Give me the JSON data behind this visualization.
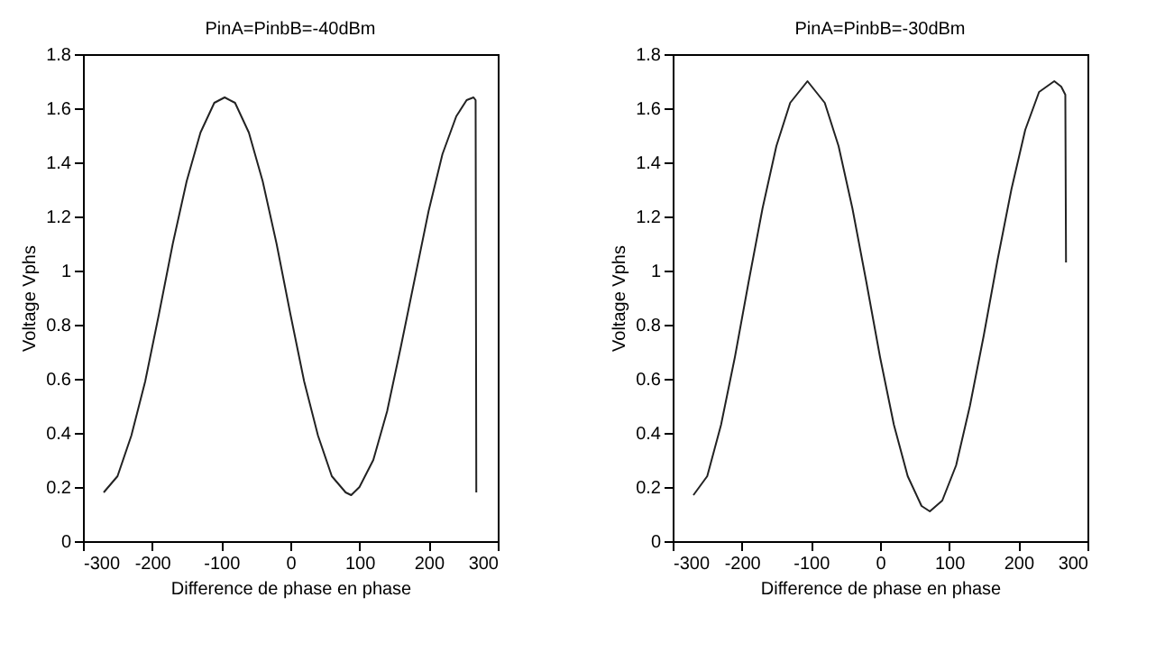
{
  "chart_data": [
    {
      "type": "line",
      "title": "PinA=PinbB=-40dBm",
      "xlabel": "Difference de phase en phase",
      "ylabel": "Voltage Vphs",
      "xlim": [
        -300,
        300
      ],
      "xticks": [
        -300,
        -200,
        -100,
        0,
        100,
        200,
        300
      ],
      "ylim": [
        0,
        1.8
      ],
      "yticks": [
        0,
        0.2,
        0.4,
        0.6,
        0.8,
        1,
        1.2,
        1.4,
        1.6,
        1.8
      ],
      "grid": false,
      "marker": "none",
      "line_style": "solid",
      "series": [
        {
          "color": "#222222",
          "x": [
            -270,
            -250,
            -230,
            -210,
            -190,
            -170,
            -150,
            -130,
            -110,
            -95,
            -80,
            -60,
            -40,
            -20,
            0,
            20,
            40,
            60,
            80,
            88,
            100,
            120,
            140,
            160,
            180,
            200,
            220,
            240,
            255,
            265,
            268,
            269
          ],
          "values": [
            0.18,
            0.24,
            0.39,
            0.59,
            0.84,
            1.1,
            1.33,
            1.51,
            1.62,
            1.64,
            1.62,
            1.51,
            1.33,
            1.1,
            0.84,
            0.59,
            0.39,
            0.24,
            0.18,
            0.17,
            0.2,
            0.3,
            0.48,
            0.72,
            0.97,
            1.22,
            1.43,
            1.57,
            1.63,
            1.64,
            1.63,
            0.18
          ]
        }
      ]
    },
    {
      "type": "line",
      "title": "PinA=PinbB=-30dBm",
      "xlabel": "Difference de phase en phase",
      "ylabel": "Voltage Vphs",
      "xlim": [
        -300,
        300
      ],
      "xticks": [
        -300,
        -200,
        -100,
        0,
        100,
        200,
        300
      ],
      "ylim": [
        0,
        1.8
      ],
      "yticks": [
        0,
        0.2,
        0.4,
        0.6,
        0.8,
        1,
        1.2,
        1.4,
        1.6,
        1.8
      ],
      "grid": false,
      "marker": "none",
      "line_style": "solid",
      "series": [
        {
          "color": "#222222",
          "x": [
            -270,
            -250,
            -230,
            -210,
            -190,
            -170,
            -150,
            -130,
            -105,
            -80,
            -60,
            -40,
            -20,
            0,
            20,
            40,
            60,
            72,
            90,
            110,
            130,
            150,
            170,
            190,
            210,
            230,
            252,
            262,
            268,
            269
          ],
          "values": [
            0.17,
            0.24,
            0.43,
            0.68,
            0.96,
            1.23,
            1.46,
            1.62,
            1.7,
            1.62,
            1.46,
            1.23,
            0.96,
            0.68,
            0.43,
            0.24,
            0.13,
            0.11,
            0.15,
            0.28,
            0.5,
            0.76,
            1.04,
            1.3,
            1.52,
            1.66,
            1.7,
            1.68,
            1.65,
            1.03
          ]
        }
      ]
    }
  ]
}
